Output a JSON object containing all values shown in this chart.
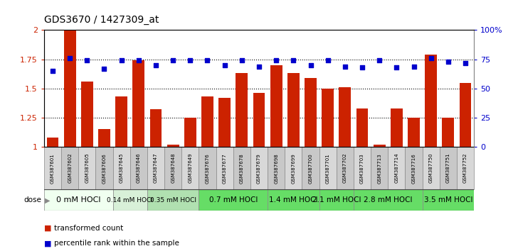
{
  "title": "GDS3670 / 1427309_at",
  "samples": [
    "GSM387601",
    "GSM387602",
    "GSM387605",
    "GSM387606",
    "GSM387645",
    "GSM387646",
    "GSM387647",
    "GSM387648",
    "GSM387649",
    "GSM387676",
    "GSM387677",
    "GSM387678",
    "GSM387679",
    "GSM387698",
    "GSM387699",
    "GSM387700",
    "GSM387701",
    "GSM387702",
    "GSM387703",
    "GSM387713",
    "GSM387714",
    "GSM387716",
    "GSM387750",
    "GSM387751",
    "GSM387752"
  ],
  "bar_values": [
    1.08,
    2.0,
    1.56,
    1.15,
    1.43,
    1.74,
    1.32,
    1.02,
    1.25,
    1.43,
    1.42,
    1.63,
    1.46,
    1.7,
    1.63,
    1.59,
    1.5,
    1.51,
    1.33,
    1.02,
    1.33,
    1.25,
    1.79,
    1.25,
    1.55
  ],
  "percentile_values": [
    65,
    76,
    74,
    67,
    74,
    74,
    70,
    74,
    74,
    74,
    70,
    74,
    69,
    74,
    74,
    70,
    74,
    69,
    68,
    74,
    68,
    69,
    76,
    73,
    72
  ],
  "dose_groups": [
    {
      "label": "0 mM HOCl",
      "start": 0,
      "end": 4,
      "color": "#f0fff0",
      "text_size": 8
    },
    {
      "label": "0.14 mM HOCl",
      "start": 4,
      "end": 6,
      "color": "#d8f0d8",
      "text_size": 6.5
    },
    {
      "label": "0.35 mM HOCl",
      "start": 6,
      "end": 9,
      "color": "#b0e0b0",
      "text_size": 6.5
    },
    {
      "label": "0.7 mM HOCl",
      "start": 9,
      "end": 13,
      "color": "#66dd66",
      "text_size": 7.5
    },
    {
      "label": "1.4 mM HOCl",
      "start": 13,
      "end": 16,
      "color": "#66dd66",
      "text_size": 7.5
    },
    {
      "label": "2.1 mM HOCl",
      "start": 16,
      "end": 18,
      "color": "#66dd66",
      "text_size": 7.5
    },
    {
      "label": "2.8 mM HOCl",
      "start": 18,
      "end": 22,
      "color": "#66dd66",
      "text_size": 7.5
    },
    {
      "label": "3.5 mM HOCl",
      "start": 22,
      "end": 25,
      "color": "#66dd66",
      "text_size": 7.5
    }
  ],
  "bar_color": "#cc2200",
  "dot_color": "#0000cc",
  "ylim_left": [
    1.0,
    2.0
  ],
  "ylim_right": [
    0,
    100
  ],
  "yticks_left": [
    1.0,
    1.25,
    1.5,
    1.75,
    2.0
  ],
  "ytick_labels_left": [
    "1",
    "1.25",
    "1.5",
    "1.75",
    "2"
  ],
  "yticks_right": [
    0,
    25,
    50,
    75,
    100
  ],
  "ytick_labels_right": [
    "0",
    "25",
    "50",
    "75",
    "100%"
  ],
  "hline_values": [
    1.25,
    1.5,
    1.75
  ],
  "title_fontsize": 10,
  "bar_width": 0.7,
  "dot_size": 22,
  "sample_box_color_even": "#d8d8d8",
  "sample_box_color_odd": "#c8c8c8"
}
